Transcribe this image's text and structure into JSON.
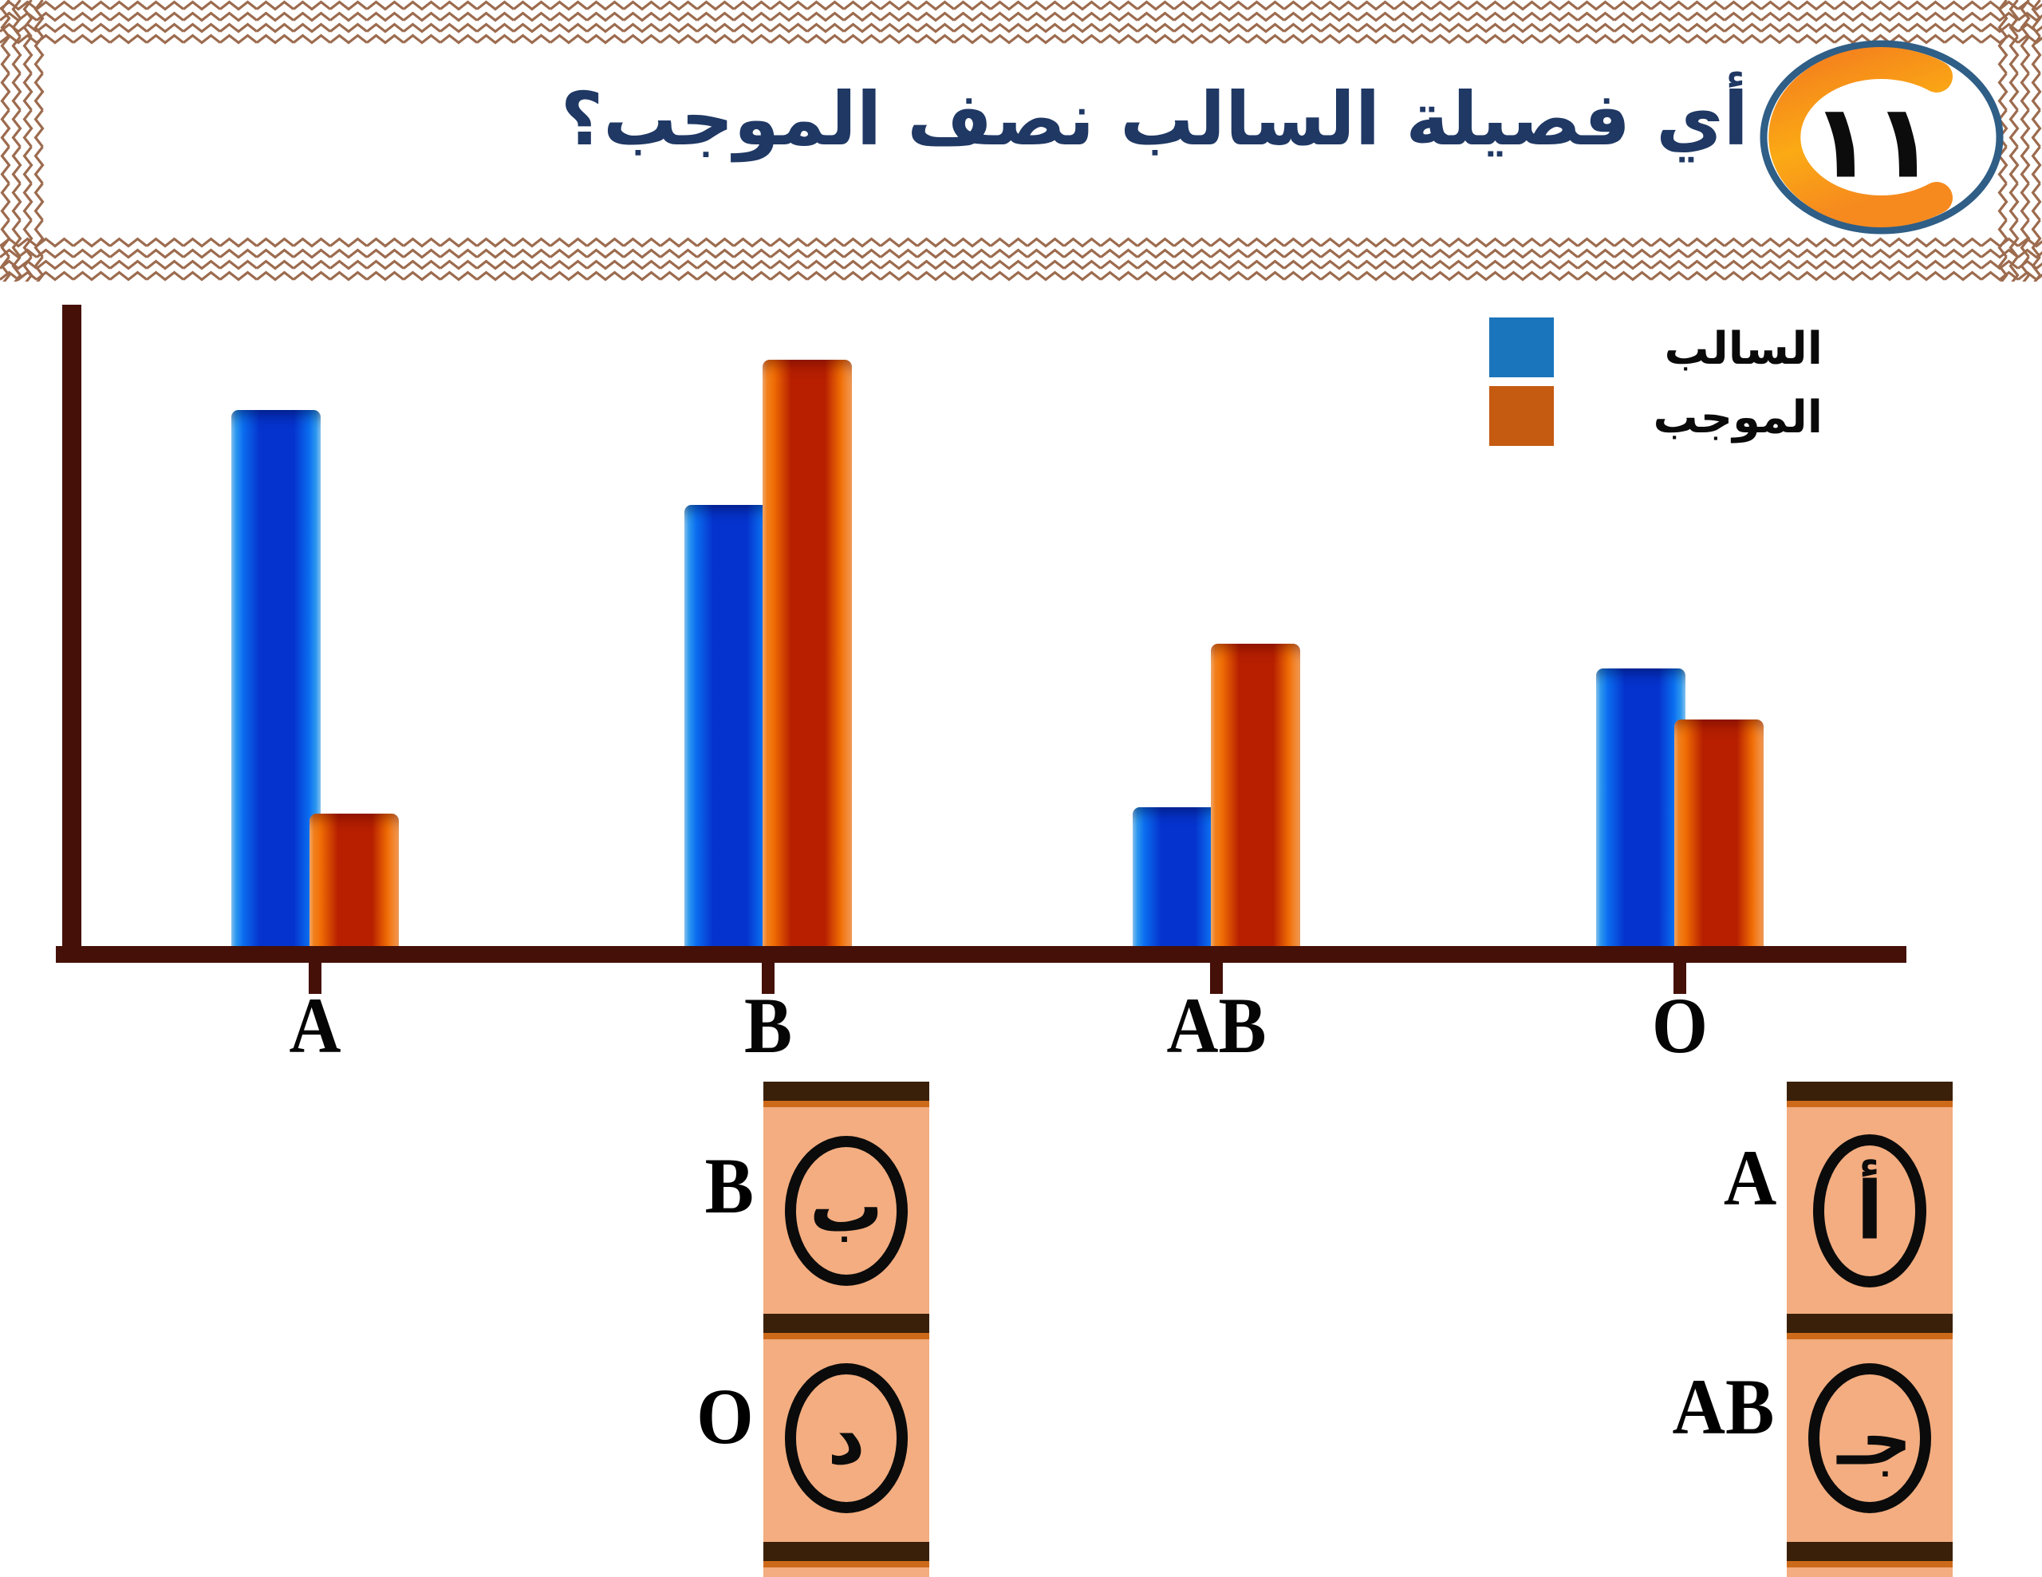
{
  "header": {
    "question_number_arabic": "١١",
    "title": "أي فصيلة السالب نصف الموجب؟",
    "title_color": "#1f3864",
    "frame_color": "#9c6b4e"
  },
  "chart_data": {
    "type": "bar",
    "title": "",
    "xlabel": "",
    "ylabel": "",
    "categories": [
      "A",
      "B",
      "AB",
      "O"
    ],
    "series": [
      {
        "name": "السالب",
        "color": "#1b75bc",
        "values": [
          85,
          70,
          22,
          44
        ]
      },
      {
        "name": "الموجب",
        "color": "#c55a11",
        "values": [
          21,
          93,
          48,
          36
        ]
      }
    ],
    "ylim": [
      0,
      100
    ],
    "grid": false,
    "axis_color": "#451008",
    "legend_position": "top-right",
    "note": "axis has no numeric tick labels; values estimated from bar heights"
  },
  "options": {
    "panel_color": "#f3ad80",
    "divider_color": "#3a2008",
    "accent_line_color": "#cd6a1a",
    "left_column": [
      {
        "label": "B",
        "arabic_letter": "ب"
      },
      {
        "label": "O",
        "arabic_letter": "د"
      }
    ],
    "right_column": [
      {
        "label": "A",
        "arabic_letter": "أ"
      },
      {
        "label": "AB",
        "arabic_letter": "جـ"
      }
    ]
  }
}
